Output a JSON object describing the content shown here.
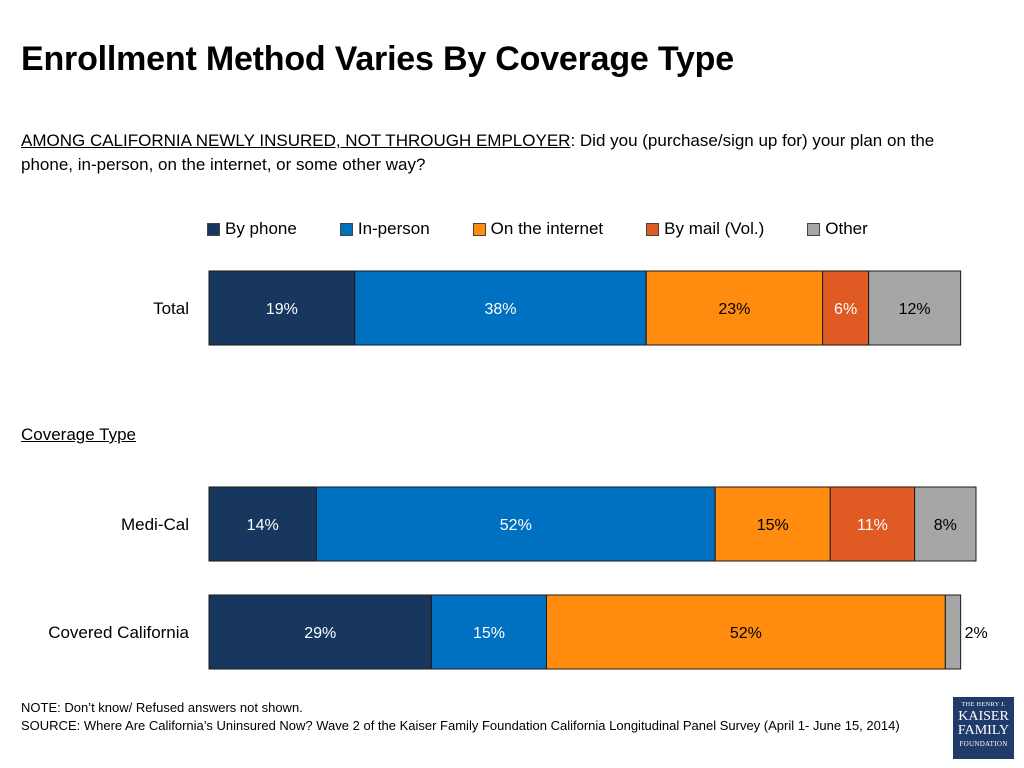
{
  "title": "Enrollment Method Varies By Coverage Type",
  "question": {
    "underlined": "AMONG CALIFORNIA NEWLY INSURED, NOT THROUGH EMPLOYER",
    "text": ": Did you (purchase/sign up for) your plan on the phone, in-person, on the internet, or some other way?"
  },
  "section_label": "Coverage Type",
  "note": "NOTE: Don’t know/ Refused answers not shown.",
  "source": "SOURCE: Where Are California’s Uninsured Now? Wave 2 of the Kaiser Family Foundation California Longitudinal Panel Survey (April 1- June 15, 2014)",
  "logo": {
    "line1": "THE HENRY J.",
    "line2": "KAISER",
    "line3": "FAMILY",
    "line4": "FOUNDATION"
  },
  "chart_data": {
    "type": "bar",
    "orientation": "horizontal",
    "stacked": true,
    "unit": "%",
    "categories": [
      "Total",
      "Medi-Cal",
      "Covered California"
    ],
    "series": [
      {
        "name": "By phone",
        "color": "#17375e",
        "label_color": "#ffffff",
        "values": [
          19,
          14,
          29
        ]
      },
      {
        "name": "In-person",
        "color": "#0070c0",
        "label_color": "#ffffff",
        "values": [
          38,
          52,
          15
        ]
      },
      {
        "name": "On the internet",
        "color": "#ff8c0f",
        "label_color": "#000000",
        "values": [
          23,
          15,
          52
        ]
      },
      {
        "name": "By mail (Vol.)",
        "color": "#e05a24",
        "label_color": "#ffffff",
        "values": [
          6,
          11,
          0
        ]
      },
      {
        "name": "Other",
        "color": "#a6a6a6",
        "label_color": "#000000",
        "values": [
          12,
          8,
          2
        ]
      }
    ],
    "legend_position": "top",
    "grid": false
  }
}
